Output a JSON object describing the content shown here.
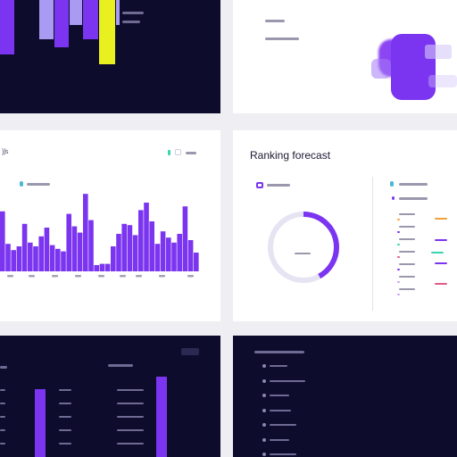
{
  "colors": {
    "dark_bg": "#0e0c2c",
    "light_bg": "#ffffff",
    "canvas": "#efeef3",
    "violet": "#7b35f0",
    "lavender": "#a99bf2",
    "yellow": "#e8f020",
    "donut_track": "#e6e4f2"
  },
  "forecast_card": {
    "heading": "Ranking forecast"
  },
  "icons": [
    "legend-dot-icon",
    "donut-icon",
    "filter-icon",
    "blob-shape-icon",
    "list-bullet-icon"
  ],
  "histogram": {
    "levels": [
      0.48,
      0.22,
      0.17,
      0.2,
      0.38,
      0.23,
      0.2,
      0.28,
      0.35,
      0.21,
      0.18,
      0.16,
      0.46,
      0.36,
      0.31,
      0.62,
      0.41,
      0.05,
      0.06,
      0.06,
      0.2,
      0.3,
      0.38,
      0.37,
      0.29,
      0.49,
      0.55,
      0.4,
      0.22,
      0.32,
      0.27,
      0.23,
      0.3,
      0.52,
      0.25,
      0.15
    ]
  },
  "top_bars": {
    "levels": [
      0.55,
      0.4,
      0.48,
      0.25,
      0.4,
      0.65,
      0.25
    ]
  },
  "donut": {
    "fraction": 0.42
  },
  "bottom_bars": {
    "levels": [
      0.8,
      0.95
    ]
  }
}
